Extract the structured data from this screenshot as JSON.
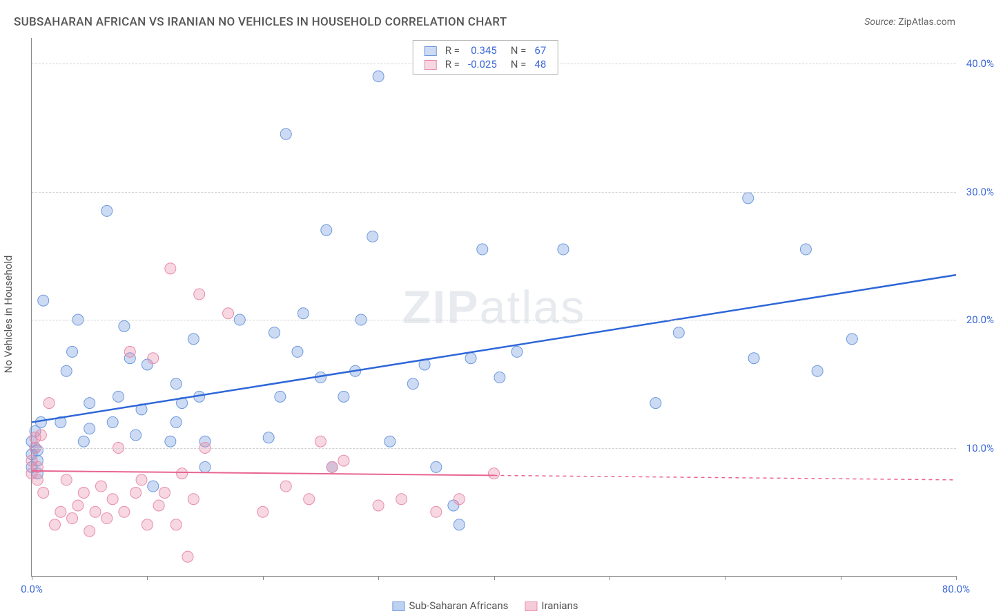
{
  "title": "SUBSAHARAN AFRICAN VS IRANIAN NO VEHICLES IN HOUSEHOLD CORRELATION CHART",
  "source_label": "Source:",
  "source_name": "ZipAtlas.com",
  "y_axis_title": "No Vehicles in Household",
  "watermark_strong": "ZIP",
  "watermark_rest": "atlas",
  "chart": {
    "type": "scatter",
    "xlim": [
      0,
      80
    ],
    "ylim": [
      0,
      42
    ],
    "x_ticks": [
      0,
      10,
      20,
      30,
      40,
      50,
      60,
      70,
      80
    ],
    "x_tick_labels": {
      "0": "0.0%",
      "80": "80.0%"
    },
    "x_tick_color": "#3b68d8",
    "y_gridlines": [
      10,
      20,
      30,
      40
    ],
    "y_tick_labels": {
      "10": "10.0%",
      "20": "20.0%",
      "30": "30.0%",
      "40": "40.0%"
    },
    "y_tick_color": "#3b68d8",
    "grid_color": "#d0d0d0",
    "background_color": "#ffffff",
    "marker_radius": 8,
    "marker_stroke_width": 1,
    "series": [
      {
        "name": "Sub-Saharan Africans",
        "color_fill": "rgba(108,152,222,0.35)",
        "color_stroke": "#6c98de",
        "r_label": "R =",
        "r_value": "0.345",
        "n_label": "N =",
        "n_value": "67",
        "trend": {
          "x1": 0,
          "y1": 12.0,
          "x2": 80,
          "y2": 23.5,
          "color": "#2e66d8",
          "width": 2.5,
          "solid_until_x": 80
        },
        "points": [
          [
            0,
            8.5
          ],
          [
            0,
            9.5
          ],
          [
            0,
            10.5
          ],
          [
            0.3,
            10.0
          ],
          [
            0.3,
            11.3
          ],
          [
            0.5,
            8.0
          ],
          [
            0.5,
            9.0
          ],
          [
            0.5,
            9.8
          ],
          [
            0.8,
            12.0
          ],
          [
            1,
            21.5
          ],
          [
            2.5,
            12.0
          ],
          [
            3,
            16.0
          ],
          [
            3.5,
            17.5
          ],
          [
            4,
            20.0
          ],
          [
            4.5,
            10.5
          ],
          [
            5,
            13.5
          ],
          [
            5,
            11.5
          ],
          [
            6.5,
            28.5
          ],
          [
            7,
            12.0
          ],
          [
            7.5,
            14.0
          ],
          [
            8,
            19.5
          ],
          [
            8.5,
            17.0
          ],
          [
            9,
            11.0
          ],
          [
            9.5,
            13.0
          ],
          [
            10,
            16.5
          ],
          [
            10.5,
            7.0
          ],
          [
            12,
            10.5
          ],
          [
            12.5,
            15.0
          ],
          [
            12.5,
            12.0
          ],
          [
            13,
            13.5
          ],
          [
            14,
            18.5
          ],
          [
            14.5,
            14.0
          ],
          [
            15,
            8.5
          ],
          [
            15,
            10.5
          ],
          [
            18,
            20.0
          ],
          [
            20.5,
            10.8
          ],
          [
            21,
            19.0
          ],
          [
            21.5,
            14.0
          ],
          [
            22,
            34.5
          ],
          [
            23,
            17.5
          ],
          [
            23.5,
            20.5
          ],
          [
            25,
            15.5
          ],
          [
            25.5,
            27.0
          ],
          [
            26,
            8.5
          ],
          [
            27,
            14.0
          ],
          [
            28,
            16.0
          ],
          [
            28.5,
            20.0
          ],
          [
            29.5,
            26.5
          ],
          [
            30,
            39.0
          ],
          [
            31,
            10.5
          ],
          [
            33,
            15.0
          ],
          [
            34,
            16.5
          ],
          [
            35,
            8.5
          ],
          [
            36.5,
            5.5
          ],
          [
            37,
            4.0
          ],
          [
            38,
            17.0
          ],
          [
            39,
            25.5
          ],
          [
            40.5,
            15.5
          ],
          [
            42,
            17.5
          ],
          [
            46,
            25.5
          ],
          [
            54,
            13.5
          ],
          [
            56,
            19.0
          ],
          [
            62,
            29.5
          ],
          [
            62.5,
            17.0
          ],
          [
            67,
            25.5
          ],
          [
            68,
            16.0
          ],
          [
            71,
            18.5
          ]
        ]
      },
      {
        "name": "Iranians",
        "color_fill": "rgba(232,140,170,0.35)",
        "color_stroke": "#e88caa",
        "r_label": "R =",
        "r_value": "-0.025",
        "n_label": "N =",
        "n_value": "48",
        "trend": {
          "x1": 0,
          "y1": 8.2,
          "x2": 80,
          "y2": 7.5,
          "color": "#e86491",
          "width": 2,
          "solid_until_x": 40
        },
        "points": [
          [
            0,
            8.0
          ],
          [
            0,
            9.0
          ],
          [
            0.3,
            10.0
          ],
          [
            0.3,
            10.8
          ],
          [
            0.5,
            7.5
          ],
          [
            0.5,
            8.5
          ],
          [
            0.8,
            11.0
          ],
          [
            1,
            6.5
          ],
          [
            1.5,
            13.5
          ],
          [
            2,
            4.0
          ],
          [
            2.5,
            5.0
          ],
          [
            3,
            7.5
          ],
          [
            3.5,
            4.5
          ],
          [
            4,
            5.5
          ],
          [
            4.5,
            6.5
          ],
          [
            5,
            3.5
          ],
          [
            5.5,
            5.0
          ],
          [
            6,
            7.0
          ],
          [
            6.5,
            4.5
          ],
          [
            7,
            6.0
          ],
          [
            7.5,
            10.0
          ],
          [
            8,
            5.0
          ],
          [
            8.5,
            17.5
          ],
          [
            9,
            6.5
          ],
          [
            9.5,
            7.5
          ],
          [
            10,
            4.0
          ],
          [
            10.5,
            17.0
          ],
          [
            11,
            5.5
          ],
          [
            11.5,
            6.5
          ],
          [
            12,
            24.0
          ],
          [
            12.5,
            4.0
          ],
          [
            13,
            8.0
          ],
          [
            13.5,
            1.5
          ],
          [
            14,
            6.0
          ],
          [
            14.5,
            22.0
          ],
          [
            15,
            10.0
          ],
          [
            17,
            20.5
          ],
          [
            20,
            5.0
          ],
          [
            22,
            7.0
          ],
          [
            24,
            6.0
          ],
          [
            25,
            10.5
          ],
          [
            26,
            8.5
          ],
          [
            27,
            9.0
          ],
          [
            30,
            5.5
          ],
          [
            32,
            6.0
          ],
          [
            35,
            5.0
          ],
          [
            37,
            6.0
          ],
          [
            40,
            8.0
          ]
        ]
      }
    ]
  },
  "bottom_legend": [
    {
      "label": "Sub-Saharan Africans",
      "color_fill": "rgba(108,152,222,0.45)",
      "color_stroke": "#6c98de"
    },
    {
      "label": "Iranians",
      "color_fill": "rgba(232,140,170,0.45)",
      "color_stroke": "#e88caa"
    }
  ]
}
